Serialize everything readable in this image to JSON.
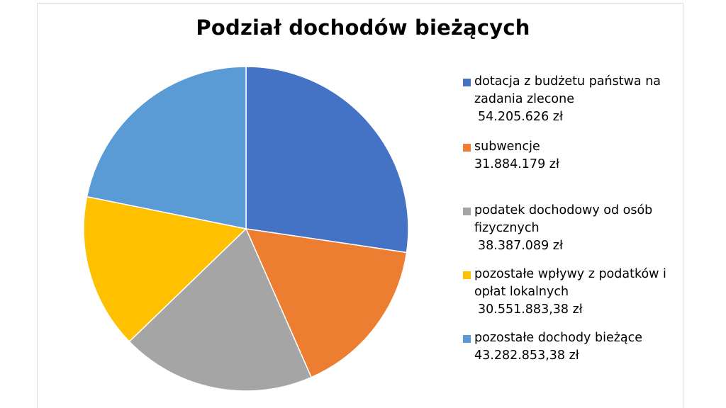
{
  "chart_data": {
    "type": "pie",
    "title": "Podział dochodów bieżących",
    "slices": [
      {
        "label": "dotacja z budżetu państwa na zadania zlecone",
        "value_label": "54.205.626 zł",
        "value": 54205626,
        "color": "#4472C4"
      },
      {
        "label": "subwencje",
        "value_label": "31.884.179 zł",
        "value": 31884179,
        "color": "#ED7D31"
      },
      {
        "label": "podatek dochodowy od osób fizycznych",
        "value_label": "38.387.089 zł",
        "value": 38387089,
        "color": "#A5A5A5"
      },
      {
        "label": "pozostałe wpływy z podatków i opłat lokalnych",
        "value_label": "30.551.883,38 zł",
        "value": 30551883.38,
        "color": "#FFC000"
      },
      {
        "label": "pozostałe dochody bieżące",
        "value_label": "43.282.853,38 zł",
        "value": 43282853.38,
        "color": "#5B9BD5"
      }
    ],
    "legend_position": "right"
  }
}
